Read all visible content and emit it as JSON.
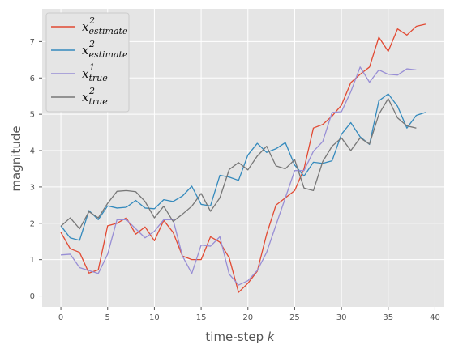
{
  "chart_data": {
    "type": "line",
    "xlabel": "time-step",
    "xlabel_var": "k",
    "ylabel": "magnitude",
    "xlim": [
      -2,
      41
    ],
    "ylim": [
      -0.3,
      7.9
    ],
    "xticks": [
      0,
      5,
      10,
      15,
      20,
      25,
      30,
      35,
      40
    ],
    "yticks": [
      0,
      1,
      2,
      3,
      4,
      5,
      6,
      7
    ],
    "grid": true,
    "legend_position": "top-left",
    "series": [
      {
        "name_base": "x",
        "name_sup": "2",
        "name_sub": "estimate",
        "color": "#E24A33",
        "x": [
          0,
          1,
          2,
          3,
          4,
          5,
          6,
          7,
          8,
          9,
          10,
          11,
          12,
          13,
          14,
          15,
          16,
          17,
          18,
          19,
          20,
          21,
          22,
          23,
          24,
          25,
          26,
          27,
          28,
          29,
          30,
          31,
          32,
          33,
          34,
          35,
          36,
          37,
          38,
          39
        ],
        "y": [
          1.75,
          1.3,
          1.2,
          0.63,
          0.72,
          1.93,
          2.0,
          2.15,
          1.7,
          1.9,
          1.52,
          2.08,
          1.75,
          1.1,
          1.0,
          1.0,
          1.63,
          1.48,
          1.05,
          0.1,
          0.35,
          0.68,
          1.7,
          2.5,
          2.7,
          2.9,
          3.5,
          4.62,
          4.72,
          4.95,
          5.25,
          5.87,
          6.1,
          6.3,
          7.12,
          6.73,
          7.35,
          7.18,
          7.42,
          7.48
        ]
      },
      {
        "name_base": "x",
        "name_sup": "2",
        "name_sub": "estimate",
        "color": "#348ABD",
        "x": [
          0,
          1,
          2,
          3,
          4,
          5,
          6,
          7,
          8,
          9,
          10,
          11,
          12,
          13,
          14,
          15,
          16,
          17,
          18,
          19,
          20,
          21,
          22,
          23,
          24,
          25,
          26,
          27,
          28,
          29,
          30,
          31,
          32,
          33,
          34,
          35,
          36,
          37,
          38,
          39
        ],
        "y": [
          1.93,
          1.6,
          1.53,
          2.35,
          2.1,
          2.48,
          2.42,
          2.44,
          2.63,
          2.42,
          2.4,
          2.65,
          2.6,
          2.75,
          3.02,
          2.52,
          2.48,
          3.32,
          3.27,
          3.18,
          3.88,
          4.2,
          3.95,
          4.05,
          4.22,
          3.6,
          3.3,
          3.68,
          3.65,
          3.72,
          4.45,
          4.77,
          4.38,
          4.17,
          5.37,
          5.56,
          5.22,
          4.62,
          4.97,
          5.05
        ]
      },
      {
        "name_base": "x",
        "name_sup": "1",
        "name_sub": "true",
        "color": "#988ED5",
        "x": [
          0,
          1,
          2,
          3,
          4,
          5,
          6,
          7,
          8,
          9,
          10,
          11,
          12,
          13,
          14,
          15,
          16,
          17,
          18,
          19,
          20,
          21,
          22,
          23,
          24,
          25,
          26,
          27,
          28,
          29,
          30,
          31,
          32,
          33,
          34,
          35,
          36,
          37,
          38
        ],
        "y": [
          1.13,
          1.15,
          0.78,
          0.7,
          0.62,
          1.15,
          2.1,
          2.1,
          1.85,
          1.6,
          1.78,
          2.1,
          2.1,
          1.1,
          0.62,
          1.4,
          1.37,
          1.63,
          0.6,
          0.3,
          0.42,
          0.7,
          1.2,
          1.95,
          2.7,
          3.45,
          3.45,
          3.98,
          4.25,
          5.05,
          5.07,
          5.62,
          6.3,
          5.88,
          6.22,
          6.1,
          6.08,
          6.25,
          6.22
        ]
      },
      {
        "name_base": "x",
        "name_sup": "2",
        "name_sub": "true",
        "color": "#777777",
        "x": [
          0,
          1,
          2,
          3,
          4,
          5,
          6,
          7,
          8,
          9,
          10,
          11,
          12,
          13,
          14,
          15,
          16,
          17,
          18,
          19,
          20,
          21,
          22,
          23,
          24,
          25,
          26,
          27,
          28,
          29,
          30,
          31,
          32,
          33,
          34,
          35,
          36,
          37,
          38
        ],
        "y": [
          1.92,
          2.15,
          1.85,
          2.32,
          2.15,
          2.55,
          2.88,
          2.9,
          2.87,
          2.6,
          2.15,
          2.47,
          2.05,
          2.25,
          2.47,
          2.82,
          2.33,
          2.7,
          3.48,
          3.67,
          3.47,
          3.85,
          4.12,
          3.58,
          3.5,
          3.75,
          2.97,
          2.9,
          3.7,
          4.12,
          4.35,
          4.0,
          4.35,
          4.18,
          5.0,
          5.43,
          4.9,
          4.68,
          4.62
        ]
      }
    ]
  }
}
